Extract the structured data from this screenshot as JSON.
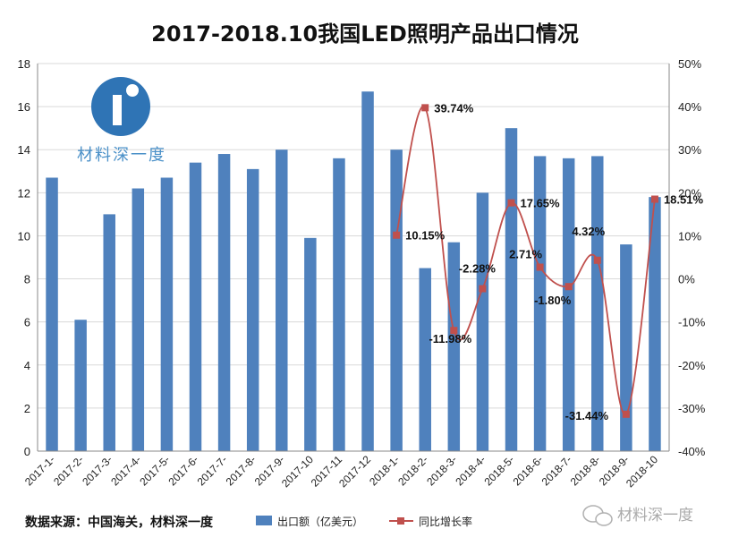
{
  "chart_data": {
    "type": "bar+line",
    "title": "2017-2018.10我国LED照明产品出口情况",
    "categories": [
      "2017-1-",
      "2017-2-",
      "2017-3-",
      "2017-4-",
      "2017-5-",
      "2017-6-",
      "2017-7-",
      "2017-8-",
      "2017-9-",
      "2017-10",
      "2017-11",
      "2017-12",
      "2018-1-",
      "2018-2-",
      "2018-3-",
      "2018-4-",
      "2018-5-",
      "2018-6-",
      "2018-7-",
      "2018-8-",
      "2018-9-",
      "2018-10"
    ],
    "series": [
      {
        "name": "出口额（亿美元）",
        "type": "bar",
        "axis": "left",
        "color": "#4f81bd",
        "values": [
          12.7,
          6.1,
          11.0,
          12.2,
          12.7,
          13.4,
          13.8,
          13.1,
          14.0,
          9.9,
          13.6,
          16.7,
          14.0,
          8.5,
          9.7,
          12.0,
          15.0,
          13.7,
          13.6,
          13.7,
          9.6,
          11.8
        ]
      },
      {
        "name": "同比增长率",
        "type": "line",
        "axis": "right",
        "color": "#c0504d",
        "values": [
          null,
          null,
          null,
          null,
          null,
          null,
          null,
          null,
          null,
          null,
          null,
          null,
          10.15,
          39.74,
          -11.98,
          -2.28,
          17.65,
          2.71,
          -1.8,
          4.32,
          -31.44,
          18.51
        ],
        "labels": [
          "",
          "",
          "",
          "",
          "",
          "",
          "",
          "",
          "",
          "",
          "",
          "",
          "10.15%",
          "39.74%",
          "-11.98%",
          "-2.28%",
          "17.65%",
          "2.71%",
          "-1.80%",
          "4.32%",
          "-31.44%",
          "18.51%"
        ]
      }
    ],
    "y_left": {
      "min": 0,
      "max": 18,
      "ticks": [
        "0",
        "2",
        "4",
        "6",
        "8",
        "10",
        "12",
        "14",
        "16",
        "18"
      ]
    },
    "y_right": {
      "min": -40,
      "max": 50,
      "ticks": [
        "-40%",
        "-30%",
        "-20%",
        "-10%",
        "0%",
        "10%",
        "20%",
        "30%",
        "40%",
        "50%"
      ]
    },
    "grid": true,
    "legend_position": "bottom"
  },
  "source_text": "数据来源：中国海关，材料深一度",
  "logo": {
    "text": "材料深一度"
  },
  "watermark": {
    "text": "材料深一度"
  }
}
